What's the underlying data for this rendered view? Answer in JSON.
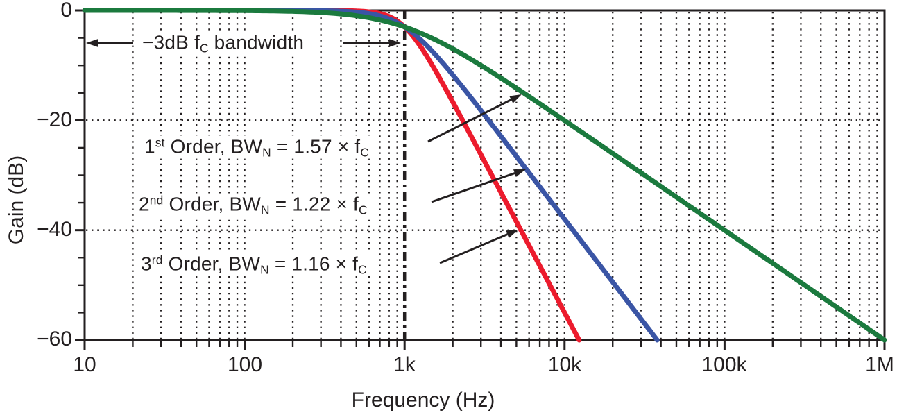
{
  "chart_data": {
    "type": "line",
    "xlabel": "Frequency (Hz)",
    "ylabel": "Gain (dB)",
    "x_scale": "log",
    "x_range_hz": [
      10,
      1000000
    ],
    "y_range_db": [
      -60,
      0
    ],
    "grid": "dotted, verticals at log minor positions, horizontals at -20 and -40 dB",
    "legend_position": "inline annotations with arrows",
    "cutoff_hz": 1000,
    "cutoff_line_style": "bold dash-dot vertical line at 1 kHz",
    "x_ticks": [
      {
        "hz": 10,
        "label": "10"
      },
      {
        "hz": 100,
        "label": "100"
      },
      {
        "hz": 1000,
        "label": "1k"
      },
      {
        "hz": 10000,
        "label": "10k"
      },
      {
        "hz": 100000,
        "label": "100k"
      },
      {
        "hz": 1000000,
        "label": "1M"
      }
    ],
    "y_ticks": [
      {
        "db": 0,
        "label": "0"
      },
      {
        "db": -20,
        "label": "−20"
      },
      {
        "db": -40,
        "label": "−40"
      },
      {
        "db": -60,
        "label": "−60"
      }
    ],
    "series": [
      {
        "name": "1st Order",
        "noise_bandwidth": "BWN = 1.57 × fC",
        "color": "#1B7A3E",
        "model": {
          "type": "lowpass_rolloff",
          "fc_hz": 1000,
          "exponent": 2
        },
        "points": [
          [
            10,
            0
          ],
          [
            100,
            -0.04
          ],
          [
            300,
            -0.37
          ],
          [
            500,
            -0.97
          ],
          [
            1000,
            -3.01
          ],
          [
            2000,
            -6.99
          ],
          [
            5000,
            -14.2
          ],
          [
            10000,
            -20.0
          ],
          [
            100000,
            -40.0
          ],
          [
            1000000,
            -60.0
          ]
        ]
      },
      {
        "name": "2nd Order",
        "noise_bandwidth": "BWN = 1.22 × fC",
        "color": "#3A55A5",
        "model": {
          "type": "lowpass_rolloff",
          "fc_hz": 1000,
          "exponent": 3.8
        },
        "points": [
          [
            100,
            0
          ],
          [
            500,
            -0.28
          ],
          [
            1000,
            -3.01
          ],
          [
            2000,
            -11.7
          ],
          [
            5000,
            -26.6
          ],
          [
            10000,
            -38.0
          ],
          [
            20000,
            -49.4
          ],
          [
            37900,
            -60.0
          ]
        ]
      },
      {
        "name": "3rd Order",
        "noise_bandwidth": "BWN = 1.16 × fC",
        "color": "#EC1B2D",
        "model": {
          "type": "lowpass_rolloff",
          "fc_hz": 1000,
          "exponent": 5.5
        },
        "points": [
          [
            100,
            0
          ],
          [
            500,
            -0.1
          ],
          [
            1000,
            -3.01
          ],
          [
            2000,
            -16.7
          ],
          [
            3000,
            -26.3
          ],
          [
            5000,
            -38.5
          ],
          [
            10000,
            -55.0
          ],
          [
            12300,
            -60.0
          ]
        ]
      }
    ]
  },
  "labels": {
    "bandwidth": {
      "pre": "−3dB f",
      "sub": "C",
      "post": " bandwidth"
    },
    "orders": [
      {
        "num": "1",
        "ord": "st",
        "mid": " Order, BW",
        "subn": "N",
        "eq": " = 1.57 × f",
        "subc": "C"
      },
      {
        "num": "2",
        "ord": "nd",
        "mid": " Order, BW",
        "subn": "N",
        "eq": " = 1.22 × f",
        "subc": "C"
      },
      {
        "num": "3",
        "ord": "rd",
        "mid": " Order, BW",
        "subn": "N",
        "eq": " = 1.16 × f",
        "subc": "C"
      }
    ]
  },
  "colors": {
    "axis": "#231F20",
    "background": "#FFFFFF",
    "first_order": "#1B7A3E",
    "second_order": "#3A55A5",
    "third_order": "#EC1B2D"
  }
}
